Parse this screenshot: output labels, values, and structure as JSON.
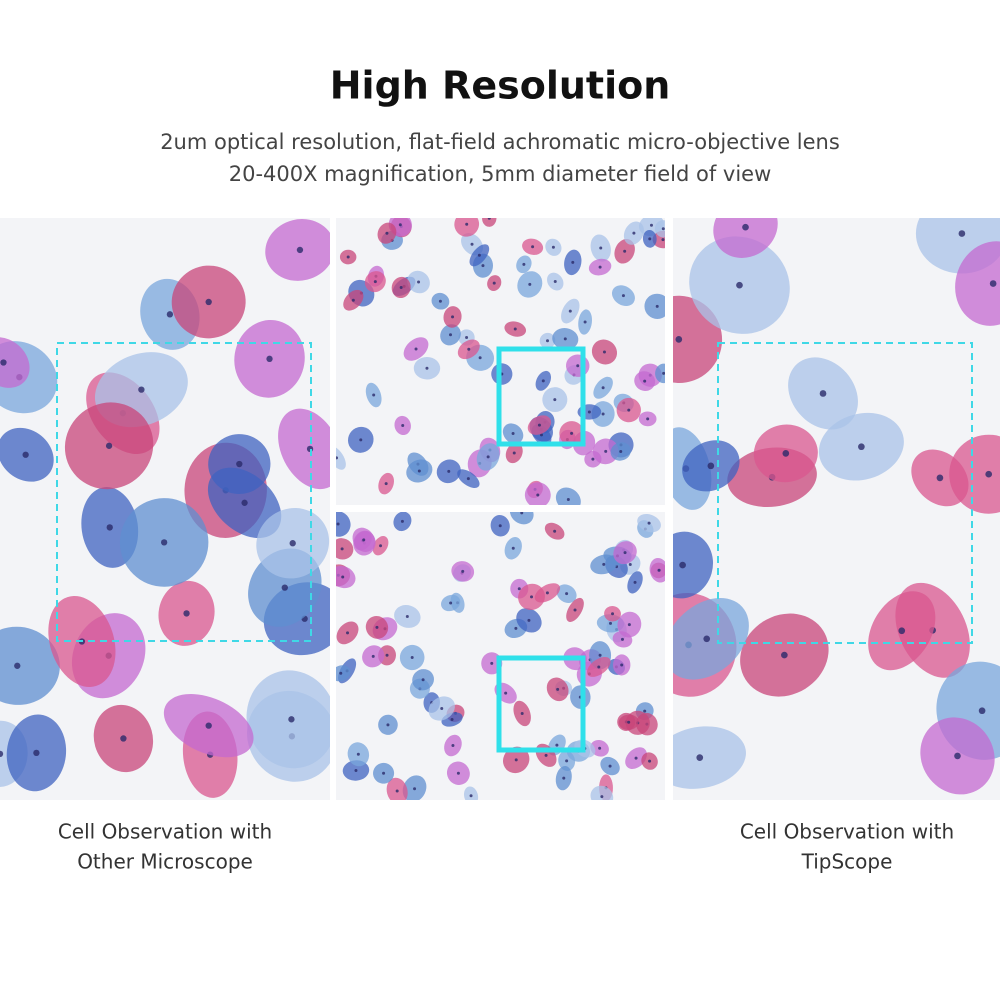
{
  "header": {
    "title": "High Resolution",
    "subtitle": [
      "2um optical resolution, flat-field achromatic micro-objective lens",
      "20-400X magnification, 5mm diameter field of view"
    ]
  },
  "captions": {
    "left": [
      "Cell Observation with",
      "Other Microscope"
    ],
    "right": [
      "Cell Observation with",
      "TipScope"
    ]
  }
}
